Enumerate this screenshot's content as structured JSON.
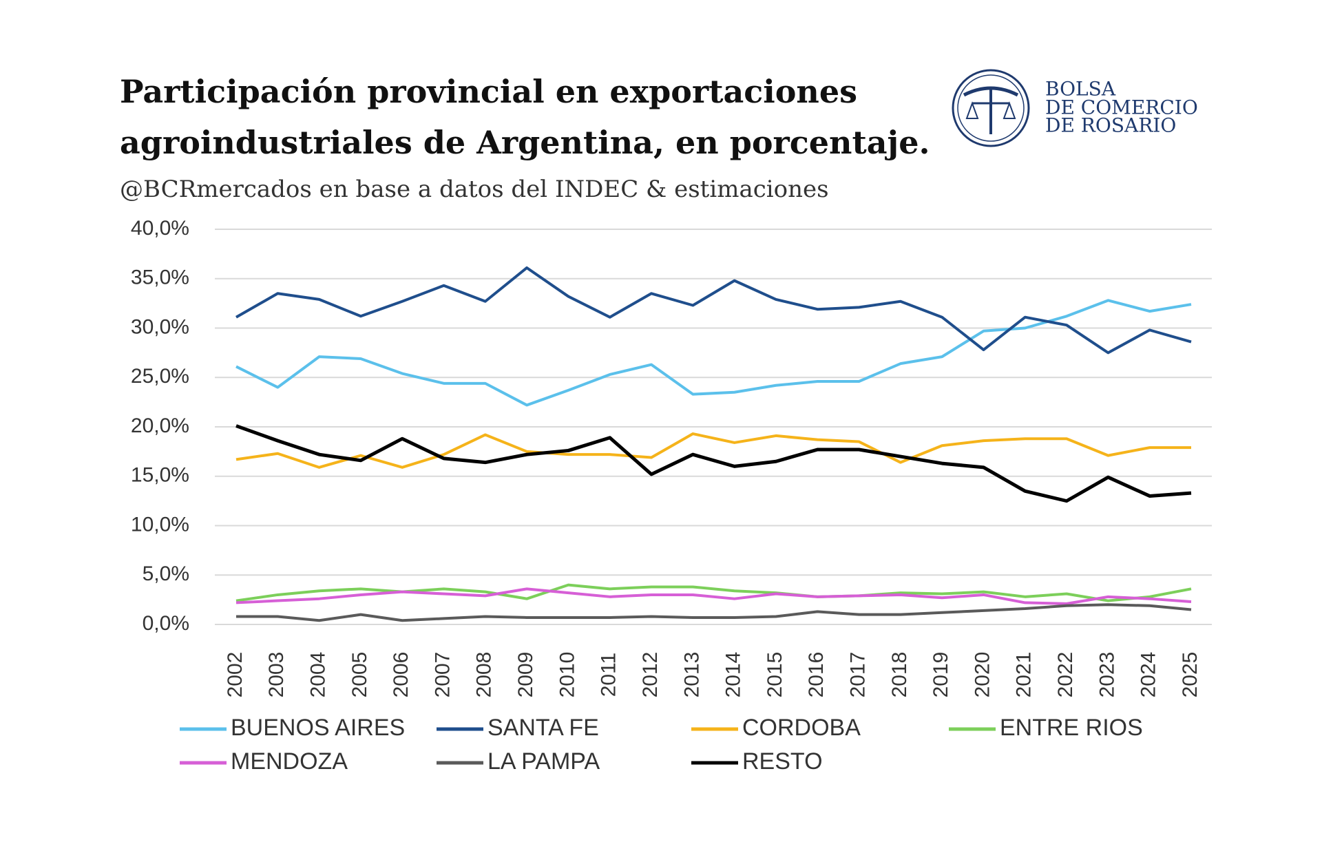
{
  "chart_data": {
    "type": "line",
    "title": [
      "Participación provincial en exportaciones",
      "agroindustriales de Argentina, en porcentaje."
    ],
    "subtitle": "@BCRmercados en base a datos del INDEC & estimaciones",
    "categories": [
      "2002",
      "2003",
      "2004",
      "2005",
      "2006",
      "2007",
      "2008",
      "2009",
      "2010",
      "2011",
      "2012",
      "2013",
      "2014",
      "2015",
      "2016",
      "2017",
      "2018",
      "2019",
      "2020",
      "2021",
      "2022",
      "2023",
      "2024",
      "2025"
    ],
    "series": [
      {
        "name": "BUENOS AIRES",
        "color": "#5bc0eb",
        "values": [
          26.1,
          24.0,
          27.1,
          26.9,
          25.4,
          24.4,
          24.4,
          22.2,
          23.7,
          25.3,
          26.3,
          23.3,
          23.5,
          24.2,
          24.6,
          24.6,
          26.4,
          27.1,
          29.7,
          30.0,
          31.2,
          32.8,
          31.7,
          32.4
        ]
      },
      {
        "name": "SANTA FE",
        "color": "#1f4e8c",
        "values": [
          31.1,
          33.5,
          32.9,
          31.2,
          32.7,
          34.3,
          32.7,
          36.1,
          33.2,
          31.1,
          33.5,
          32.3,
          34.8,
          32.9,
          31.9,
          32.1,
          32.7,
          31.1,
          27.8,
          31.1,
          30.3,
          27.5,
          29.8,
          28.6
        ]
      },
      {
        "name": "CORDOBA",
        "color": "#f5b31a",
        "values": [
          16.7,
          17.3,
          15.9,
          17.1,
          15.9,
          17.2,
          19.2,
          17.5,
          17.2,
          17.2,
          16.9,
          19.3,
          18.4,
          19.1,
          18.7,
          18.5,
          16.4,
          18.1,
          18.6,
          18.8,
          18.8,
          17.1,
          17.9,
          17.9
        ]
      },
      {
        "name": "ENTRE RIOS",
        "color": "#7ccf5a",
        "values": [
          2.4,
          3.0,
          3.4,
          3.6,
          3.3,
          3.6,
          3.3,
          2.6,
          4.0,
          3.6,
          3.8,
          3.8,
          3.4,
          3.2,
          2.8,
          2.9,
          3.2,
          3.1,
          3.3,
          2.8,
          3.1,
          2.4,
          2.8,
          3.6
        ]
      },
      {
        "name": "MENDOZA",
        "color": "#d65fd6",
        "values": [
          2.2,
          2.4,
          2.6,
          3.0,
          3.3,
          3.1,
          2.9,
          3.6,
          3.2,
          2.8,
          3.0,
          3.0,
          2.6,
          3.1,
          2.8,
          2.9,
          3.0,
          2.7,
          3.0,
          2.2,
          2.1,
          2.8,
          2.6,
          2.3
        ]
      },
      {
        "name": "LA PAMPA",
        "color": "#5a5a5a",
        "values": [
          0.8,
          0.8,
          0.4,
          1.0,
          0.4,
          0.6,
          0.8,
          0.7,
          0.7,
          0.7,
          0.8,
          0.7,
          0.7,
          0.8,
          1.3,
          1.0,
          1.0,
          1.2,
          1.4,
          1.6,
          1.9,
          2.0,
          1.9,
          1.5
        ]
      },
      {
        "name": "RESTO",
        "color": "#000000",
        "values": [
          20.1,
          18.6,
          17.2,
          16.6,
          18.8,
          16.8,
          16.4,
          17.2,
          17.6,
          18.9,
          15.2,
          17.2,
          16.0,
          16.5,
          17.7,
          17.7,
          17.0,
          16.3,
          15.9,
          13.5,
          12.5,
          14.9,
          13.0,
          13.3
        ]
      }
    ],
    "ylim": [
      0,
      40
    ],
    "yticks": [
      {
        "value": 0,
        "label": "0,0%"
      },
      {
        "value": 5,
        "label": "5,0%"
      },
      {
        "value": 10,
        "label": "10,0%"
      },
      {
        "value": 15,
        "label": "15,0%"
      },
      {
        "value": 20,
        "label": "20,0%"
      },
      {
        "value": 25,
        "label": "25,0%"
      },
      {
        "value": 30,
        "label": "30,0%"
      },
      {
        "value": 35,
        "label": "35,0%"
      },
      {
        "value": 40,
        "label": "40,0%"
      }
    ],
    "grid": true,
    "legend": "bottom"
  },
  "logo": {
    "lines": [
      "BOLSA",
      "DE COMERCIO",
      "DE ROSARIO"
    ]
  }
}
